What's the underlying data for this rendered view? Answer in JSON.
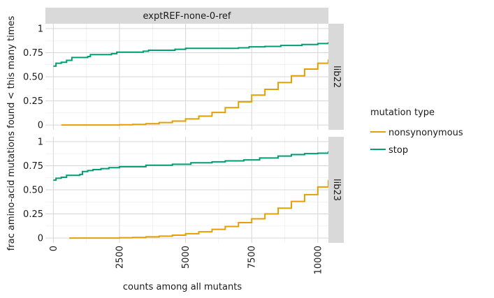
{
  "chart_data": {
    "type": "line",
    "title": "",
    "facet_column_label": "exptREF-none-0-ref",
    "xlabel": "counts among all mutants",
    "ylabel": "frac amino-acid mutations found < this many times",
    "xlim": [
      -300,
      10400
    ],
    "ylim": [
      -0.05,
      1.05
    ],
    "x_ticks": [
      0,
      2500,
      5000,
      7500,
      10000
    ],
    "y_ticks": [
      0,
      0.25,
      0.5,
      0.75,
      1
    ],
    "y_tick_labels": [
      "0",
      "0.25",
      "0.50",
      "0.75",
      "1"
    ],
    "grid": true,
    "legend": {
      "title": "mutation type",
      "placement": "right",
      "entries": [
        {
          "name": "nonsynonymous",
          "color": "#E69F00"
        },
        {
          "name": "stop",
          "color": "#009E73"
        }
      ]
    },
    "panels": [
      {
        "row_label": "lib22",
        "series": [
          {
            "name": "nonsynonymous",
            "color": "#E69F00",
            "x": [
              300,
              1000,
              2000,
              2500,
              3000,
              3500,
              4000,
              4500,
              5000,
              5500,
              6000,
              6500,
              7000,
              7500,
              8000,
              8500,
              9000,
              9500,
              10000,
              10400
            ],
            "y": [
              0.0,
              0.0,
              0.0,
              0.002,
              0.006,
              0.013,
              0.025,
              0.04,
              0.063,
              0.092,
              0.13,
              0.18,
              0.24,
              0.31,
              0.37,
              0.44,
              0.51,
              0.58,
              0.64,
              0.68
            ]
          },
          {
            "name": "stop",
            "color": "#009E73",
            "x": [
              0,
              100,
              300,
              500,
              700,
              1300,
              1400,
              2200,
              2400,
              3400,
              3600,
              4600,
              5000,
              7000,
              7400,
              8000,
              8600,
              9400,
              10000,
              10400
            ],
            "y": [
              0.61,
              0.64,
              0.65,
              0.67,
              0.7,
              0.71,
              0.73,
              0.74,
              0.755,
              0.765,
              0.775,
              0.785,
              0.795,
              0.8,
              0.81,
              0.815,
              0.825,
              0.835,
              0.845,
              0.86
            ]
          }
        ]
      },
      {
        "row_label": "lib23",
        "series": [
          {
            "name": "nonsynonymous",
            "color": "#E69F00",
            "x": [
              600,
              1500,
              2500,
              3000,
              3500,
              4000,
              4500,
              5000,
              5500,
              6000,
              6500,
              7000,
              7500,
              8000,
              8500,
              9000,
              9500,
              10000,
              10400
            ],
            "y": [
              0.0,
              0.0,
              0.003,
              0.006,
              0.012,
              0.02,
              0.03,
              0.045,
              0.065,
              0.09,
              0.12,
              0.16,
              0.2,
              0.25,
              0.31,
              0.38,
              0.45,
              0.53,
              0.6
            ]
          },
          {
            "name": "stop",
            "color": "#009E73",
            "x": [
              0,
              100,
              300,
              500,
              1000,
              1100,
              1300,
              1500,
              1800,
              2100,
              2500,
              3500,
              4500,
              5200,
              6000,
              6500,
              7200,
              7800,
              8500,
              9000,
              9500,
              10000,
              10400
            ],
            "y": [
              0.6,
              0.62,
              0.63,
              0.65,
              0.66,
              0.69,
              0.7,
              0.71,
              0.72,
              0.73,
              0.74,
              0.755,
              0.765,
              0.78,
              0.79,
              0.8,
              0.81,
              0.83,
              0.85,
              0.865,
              0.875,
              0.88,
              0.9
            ]
          }
        ]
      }
    ]
  }
}
